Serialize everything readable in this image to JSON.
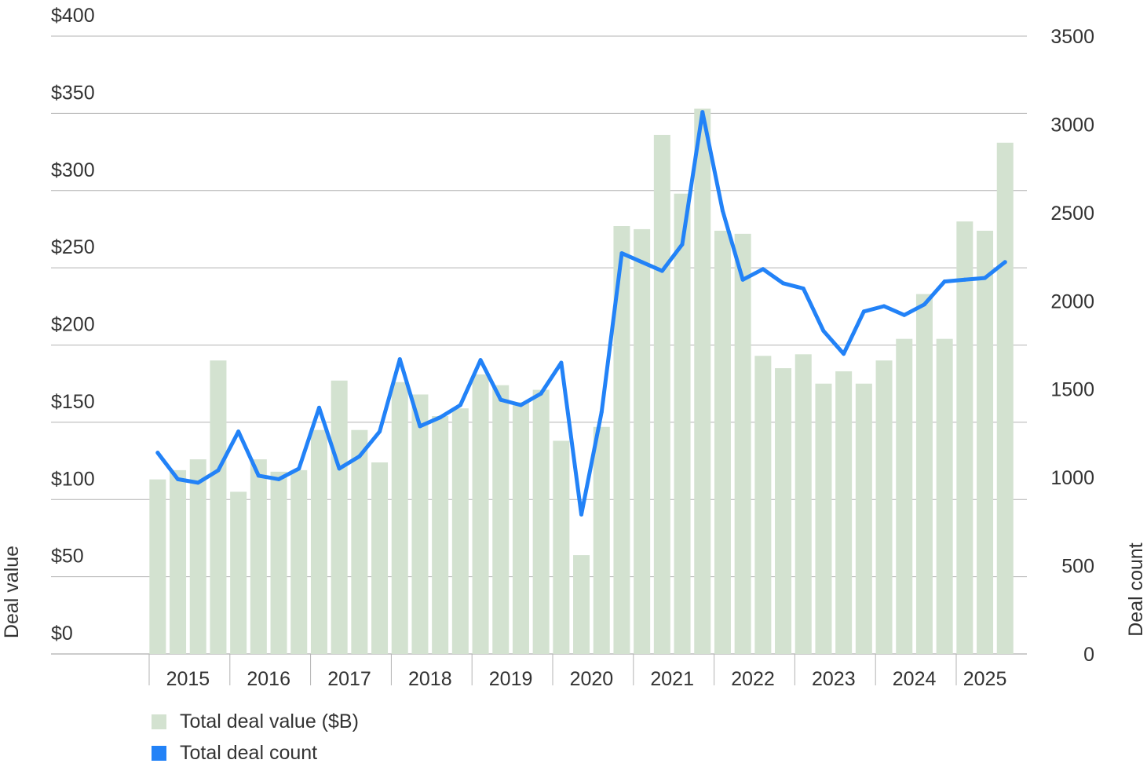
{
  "chart_data": {
    "type": "bar",
    "title": "",
    "xlabel": "",
    "ylabel": "Deal value",
    "y2label": "Deal count",
    "ylim": [
      0,
      400
    ],
    "y2lim": [
      0,
      3500
    ],
    "y_ticks": [
      "$0",
      "$50",
      "$100",
      "$150",
      "$200",
      "$250",
      "$300",
      "$350",
      "$400"
    ],
    "y2_ticks": [
      "0",
      "500",
      "1000",
      "1500",
      "2000",
      "2500",
      "3000",
      "3500"
    ],
    "year_labels": [
      "2015",
      "2016",
      "2017",
      "2018",
      "2019",
      "2020",
      "2021",
      "2022",
      "2023",
      "2024",
      "2025"
    ],
    "categories": [
      "Q1 2015",
      "Q2 2015",
      "Q3 2015",
      "Q4 2015",
      "Q1 2016",
      "Q2 2016",
      "Q3 2016",
      "Q4 2016",
      "Q1 2017",
      "Q2 2017",
      "Q3 2017",
      "Q4 2017",
      "Q1 2018",
      "Q2 2018",
      "Q3 2018",
      "Q4 2018",
      "Q1 2019",
      "Q2 2019",
      "Q3 2019",
      "Q4 2019",
      "Q1 2020",
      "Q2 2020",
      "Q3 2020",
      "Q4 2020",
      "Q1 2021",
      "Q2 2021",
      "Q3 2021",
      "Q4 2021",
      "Q1 2022",
      "Q2 2022",
      "Q3 2022",
      "Q4 2022",
      "Q1 2023",
      "Q2 2023",
      "Q3 2023",
      "Q4 2023",
      "Q1 2024",
      "Q2 2024",
      "Q3 2024",
      "Q4 2024",
      "Q1 2025",
      "Q2 2025",
      "Q3 2025"
    ],
    "series": [
      {
        "name": "Total deal value ($B)",
        "type": "bar",
        "axis": "left",
        "color": "#d3e2d0",
        "values": [
          113,
          119,
          126,
          190,
          105,
          126,
          118,
          119,
          145,
          177,
          145,
          124,
          176,
          168,
          154,
          159,
          181,
          174,
          163,
          171,
          138,
          64,
          147,
          277,
          275,
          336,
          298,
          353,
          274,
          272,
          193,
          185,
          194,
          175,
          183,
          175,
          190,
          204,
          233,
          204,
          280,
          274,
          331
        ]
      },
      {
        "name": "Total deal count",
        "type": "line",
        "axis": "right",
        "color": "#2282f7",
        "values": [
          1140,
          990,
          970,
          1040,
          1260,
          1010,
          990,
          1050,
          1395,
          1050,
          1120,
          1260,
          1670,
          1290,
          1340,
          1410,
          1665,
          1440,
          1410,
          1475,
          1650,
          790,
          1370,
          2270,
          2220,
          2170,
          2320,
          3070,
          2510,
          2120,
          2180,
          2100,
          2070,
          1830,
          1700,
          1940,
          1970,
          1920,
          1980,
          2110,
          2120,
          2130,
          2220
        ]
      }
    ],
    "legend": {
      "position": "bottom-left",
      "items": [
        {
          "label": "Total deal value ($B)",
          "color": "#d3e2d0"
        },
        {
          "label": "Total deal count",
          "color": "#2282f7"
        }
      ]
    },
    "grid": true
  }
}
